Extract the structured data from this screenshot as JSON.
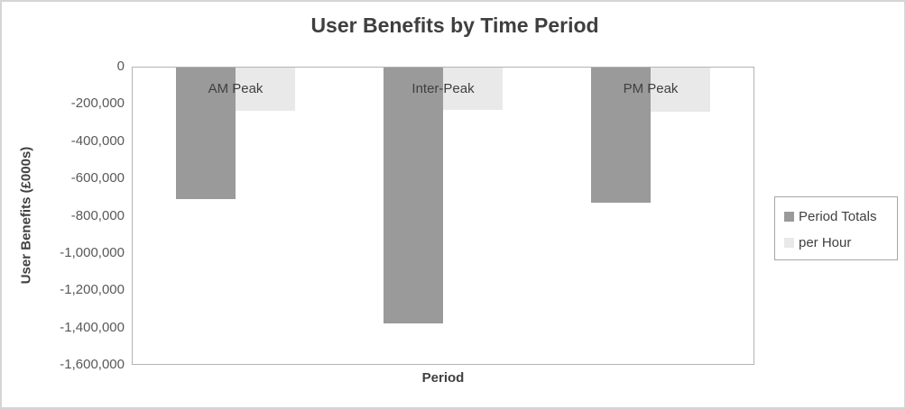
{
  "chart_data": {
    "type": "bar",
    "title": "User Benefits by Time Period",
    "xlabel": "Period",
    "ylabel": "User Benefits (£000s)",
    "categories": [
      "AM Peak",
      "Inter-Peak",
      "PM Peak"
    ],
    "series": [
      {
        "name": "Period Totals",
        "color": "#9a9a9a",
        "values": [
          -710000,
          -1380000,
          -730000
        ]
      },
      {
        "name": "per Hour",
        "color": "#e9e9e9",
        "values": [
          -235000,
          -230000,
          -240000
        ]
      }
    ],
    "ylim": [
      0,
      -1600000
    ],
    "ytick_step": -200000,
    "ytick_labels": [
      "0",
      "-200,000",
      "-400,000",
      "-600,000",
      "-800,000",
      "-1,000,000",
      "-1,200,000",
      "-1,400,000",
      "-1,600,000"
    ],
    "grid": true,
    "legend_position": "right",
    "bar_orientation": "vertical-negative"
  }
}
